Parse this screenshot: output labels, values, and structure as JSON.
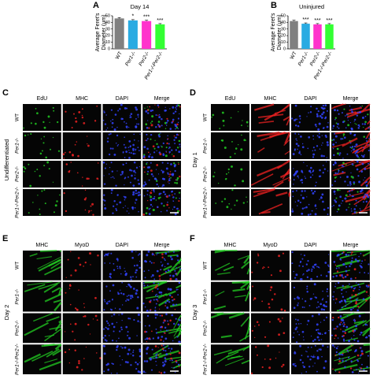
{
  "chart_data": [
    {
      "type": "bar",
      "letter": "A",
      "title": "Day 14",
      "ylabel": [
        "Average Feret's",
        "Diameter (μm)"
      ],
      "categories": [
        "WT",
        "Per1-/-",
        "Per2-/-",
        "Per1-/-Per2-/-"
      ],
      "values": [
        46,
        43,
        42,
        37
      ],
      "colors": [
        "#808080",
        "#29abe2",
        "#ff33cc",
        "#33ff33"
      ],
      "significance": [
        null,
        "*",
        "***",
        "***"
      ],
      "ylim": [
        0,
        50
      ],
      "yticks": [
        0,
        10,
        20,
        30,
        40,
        50
      ]
    },
    {
      "type": "bar",
      "letter": "B",
      "title": "Uninjured",
      "ylabel": [
        "Average Feret's",
        "Diameter (μm)"
      ],
      "categories": [
        "WT",
        "Per1-/-",
        "Per2-/-",
        "Per1-/-Per2-/-"
      ],
      "values": [
        42,
        38,
        37,
        37
      ],
      "colors": [
        "#808080",
        "#29abe2",
        "#ff33cc",
        "#33ff33"
      ],
      "significance": [
        null,
        "***",
        "***",
        "***"
      ],
      "ylim": [
        0,
        50
      ],
      "yticks": [
        0,
        10,
        20,
        30,
        40,
        50
      ]
    }
  ],
  "panels": [
    {
      "letter": "C",
      "side": "Undifferentiated",
      "columns": [
        {
          "label": "EdU",
          "color": "#22cc22"
        },
        {
          "label": "MHC",
          "color": "#ee2222"
        },
        {
          "label": "DAPI",
          "color": "#3344ff"
        },
        {
          "label": "Merge",
          "color": "#000000"
        }
      ],
      "rows": [
        "WT",
        "Per1-/-",
        "Per2-/-",
        "Per1-/-Per2-/-"
      ]
    },
    {
      "letter": "D",
      "side": "Day 1",
      "columns": [
        {
          "label": "EdU",
          "color": "#22cc22"
        },
        {
          "label": "MHC",
          "color": "#ee2222"
        },
        {
          "label": "DAPI",
          "color": "#3344ff"
        },
        {
          "label": "Merge",
          "color": "#000000"
        }
      ],
      "rows": [
        "WT",
        "Per1-/-",
        "Per2-/-",
        "Per1-/-Per2-/-"
      ]
    },
    {
      "letter": "E",
      "side": "Day 2",
      "columns": [
        {
          "label": "MHC",
          "color": "#22cc22"
        },
        {
          "label": "MyoD",
          "color": "#ee2222"
        },
        {
          "label": "DAPI",
          "color": "#3344ff"
        },
        {
          "label": "Merge",
          "color": "#000000"
        }
      ],
      "rows": [
        "WT",
        "Per1-/-",
        "Per2-/-",
        "Per1-/-Per2-/-"
      ]
    },
    {
      "letter": "F",
      "side": "Day 3",
      "columns": [
        {
          "label": "MHC",
          "color": "#22cc22"
        },
        {
          "label": "MyoD",
          "color": "#ee2222"
        },
        {
          "label": "DAPI",
          "color": "#3344ff"
        },
        {
          "label": "Merge",
          "color": "#000000"
        }
      ],
      "rows": [
        "WT",
        "Per1-/-",
        "Per2-/-",
        "Per1-/-Per2-/-"
      ]
    }
  ]
}
